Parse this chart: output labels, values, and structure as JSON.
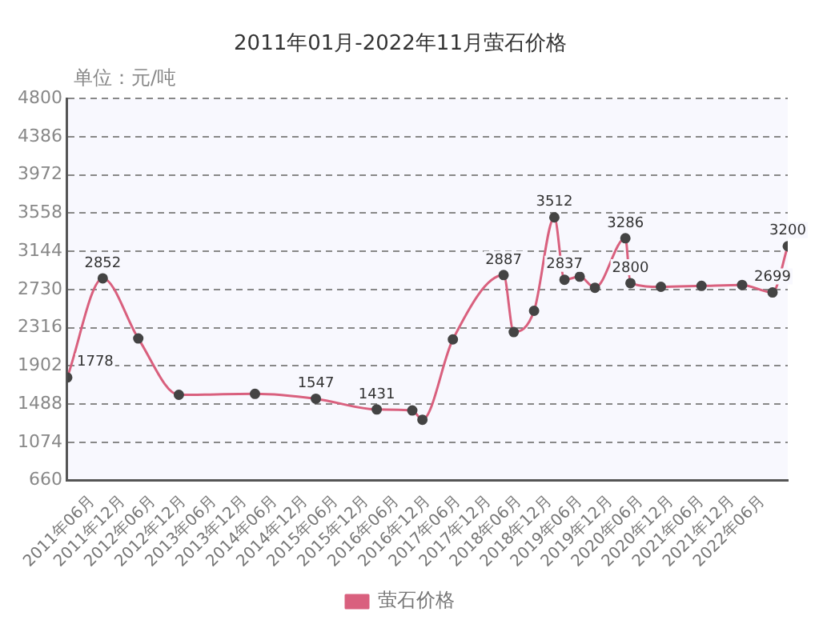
{
  "chart_data": {
    "type": "line",
    "title": "2011年01月-2022年11月萤石价格",
    "ylabel": "单位：元/吨",
    "x": [
      "2011-01",
      "2011-08",
      "2012-03",
      "2012-11",
      "2014-02",
      "2015-02",
      "2016-02",
      "2016-09",
      "2016-11",
      "2017-05",
      "2018-03",
      "2018-05",
      "2018-09",
      "2019-01",
      "2019-03",
      "2019-06",
      "2019-09",
      "2020-03",
      "2020-04",
      "2020-10",
      "2021-06",
      "2022-02",
      "2022-08",
      "2022-11"
    ],
    "series": [
      {
        "name": "萤石价格",
        "color": "#d9607e",
        "values": [
          1778,
          2852,
          2200,
          1590,
          1600,
          1547,
          1431,
          1420,
          1320,
          2190,
          2887,
          2270,
          2500,
          3512,
          2837,
          2870,
          2750,
          3286,
          2800,
          2760,
          2770,
          2780,
          2699,
          3200
        ],
        "value_labels": [
          "1778",
          "2852",
          null,
          null,
          null,
          "1547",
          "1431",
          null,
          null,
          null,
          "2887",
          null,
          null,
          "3512",
          "2837",
          null,
          null,
          "3286",
          "2800",
          null,
          null,
          null,
          "2699",
          "3200"
        ]
      }
    ],
    "xlim": [
      "2011-01",
      "2022-11"
    ],
    "xticks": [
      {
        "value": "2011-06",
        "label": "2011年06月"
      },
      {
        "value": "2011-12",
        "label": "2011年12月"
      },
      {
        "value": "2012-06",
        "label": "2012年06月"
      },
      {
        "value": "2012-12",
        "label": "2012年12月"
      },
      {
        "value": "2013-06",
        "label": "2013年06月"
      },
      {
        "value": "2013-12",
        "label": "2013年12月"
      },
      {
        "value": "2014-06",
        "label": "2014年06月"
      },
      {
        "value": "2014-12",
        "label": "2014年12月"
      },
      {
        "value": "2015-06",
        "label": "2015年06月"
      },
      {
        "value": "2015-12",
        "label": "2015年12月"
      },
      {
        "value": "2016-06",
        "label": "2016年06月"
      },
      {
        "value": "2016-12",
        "label": "2016年12月"
      },
      {
        "value": "2017-06",
        "label": "2017年06月"
      },
      {
        "value": "2017-12",
        "label": "2017年12月"
      },
      {
        "value": "2018-06",
        "label": "2018年06月"
      },
      {
        "value": "2018-12",
        "label": "2018年12月"
      },
      {
        "value": "2019-06",
        "label": "2019年06月"
      },
      {
        "value": "2019-12",
        "label": "2019年12月"
      },
      {
        "value": "2020-06",
        "label": "2020年06月"
      },
      {
        "value": "2020-12",
        "label": "2020年12月"
      },
      {
        "value": "2021-06",
        "label": "2021年06月"
      },
      {
        "value": "2021-12",
        "label": "2021年12月"
      },
      {
        "value": "2022-06",
        "label": "2022年06月"
      }
    ],
    "ylim": [
      660,
      4800
    ],
    "yticks": [
      660,
      1074,
      1488,
      1902,
      2316,
      2730,
      3144,
      3558,
      3972,
      4386,
      4800
    ],
    "grid": "y",
    "legend": "bottom",
    "marker": "circle",
    "line_style": "solid"
  }
}
